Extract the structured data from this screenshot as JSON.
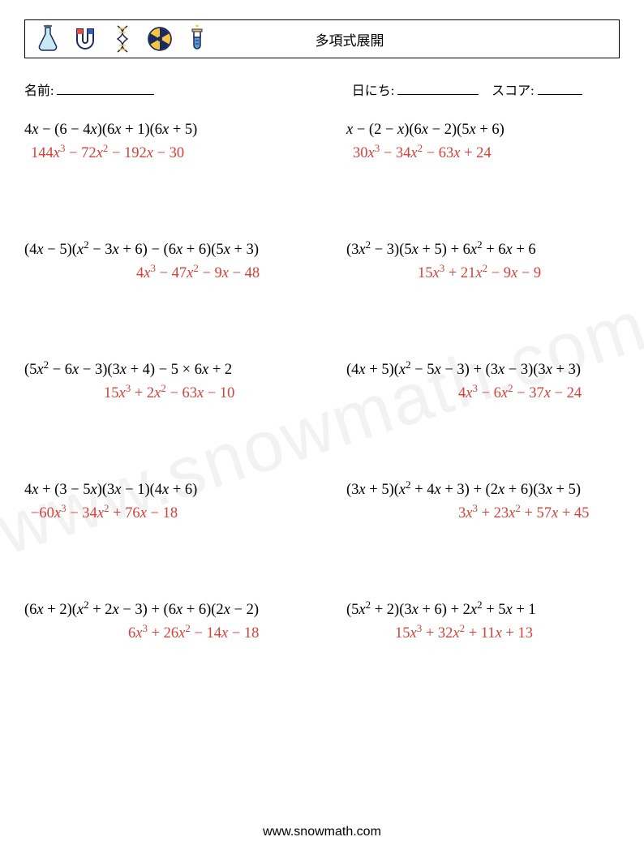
{
  "header": {
    "title": "多項式展開",
    "icons": [
      "flask-icon",
      "magnet-icon",
      "dna-icon",
      "radiation-icon",
      "test-tube-icon"
    ],
    "icon_colors": {
      "flask_fill": "#c9e8f5",
      "flask_stroke": "#1a2a5e",
      "flask_flame": "#f5c542",
      "magnet_stroke": "#1a2a5e",
      "magnet_left": "#e74c3c",
      "magnet_right": "#3b5bb5",
      "dna_stroke": "#1a2a5e",
      "dna_rung": "#f5c542",
      "rad_stroke": "#1a2a5e",
      "rad_fill": "#f5c542",
      "tube_stroke": "#1a2a5e",
      "tube_fill": "#5a9bd4",
      "tube_flame": "#f5c542"
    }
  },
  "meta": {
    "name_label": "名前:",
    "date_label": "日にち:",
    "score_label": "スコア:"
  },
  "style": {
    "answer_color": "#d8403a",
    "question_color": "#000000",
    "background": "#ffffff",
    "watermark_color": "#f2f2f2",
    "question_fontsize": 18.5,
    "answer_fontsize": 18.5
  },
  "watermark": "www.snowmath.com",
  "footer": "www.snowmath.com",
  "rows": [
    {
      "left": {
        "question": "4<i>x</i> − (6 − 4<i>x</i>)(6<i>x</i> + 1)(6<i>x</i> + 5)",
        "answer": "144<i>x</i><sup>3</sup> − 72<i>x</i><sup>2</sup> − 192<i>x</i> − 30",
        "answer_indent": 8
      },
      "right": {
        "question": "<i>x</i> − (2 − <i>x</i>)(6<i>x</i> − 2)(5<i>x</i> + 6)",
        "answer": "30<i>x</i><sup>3</sup> − 34<i>x</i><sup>2</sup> − 63<i>x</i> + 24",
        "answer_indent": 8
      }
    },
    {
      "left": {
        "question": "(4<i>x</i> − 5)(<i>x</i><sup>2</sup> − 3<i>x</i> + 6) − (6<i>x</i> + 6)(5<i>x</i> + 3)",
        "answer": "4<i>x</i><sup>3</sup> − 47<i>x</i><sup>2</sup> − 9<i>x</i> − 48",
        "answer_indent": 138
      },
      "right": {
        "question": "(3<i>x</i><sup>2</sup> − 3)(5<i>x</i> + 5) + 6<i>x</i><sup>2</sup> + 6<i>x</i> + 6",
        "answer": "15<i>x</i><sup>3</sup> + 21<i>x</i><sup>2</sup> − 9<i>x</i> − 9",
        "answer_indent": 88
      }
    },
    {
      "left": {
        "question": "(5<i>x</i><sup>2</sup> − 6<i>x</i> − 3)(3<i>x</i> + 4) − 5 × 6<i>x</i> + 2",
        "answer": "15<i>x</i><sup>3</sup> + 2<i>x</i><sup>2</sup> − 63<i>x</i> − 10",
        "answer_indent": 98
      },
      "right": {
        "question": "(4<i>x</i> + 5)(<i>x</i><sup>2</sup> − 5<i>x</i> − 3) + (3<i>x</i> − 3)(3<i>x</i> + 3)",
        "answer": "4<i>x</i><sup>3</sup> − 6<i>x</i><sup>2</sup> − 37<i>x</i> − 24",
        "answer_indent": 138
      }
    },
    {
      "left": {
        "question": "4<i>x</i> + (3 − 5<i>x</i>)(3<i>x</i> − 1)(4<i>x</i> + 6)",
        "answer": "−60<i>x</i><sup>3</sup> − 34<i>x</i><sup>2</sup> + 76<i>x</i> − 18",
        "answer_indent": 8
      },
      "right": {
        "question": "(3<i>x</i> + 5)(<i>x</i><sup>2</sup> + 4<i>x</i> + 3) + (2<i>x</i> + 6)(3<i>x</i> + 5)",
        "answer": "3<i>x</i><sup>3</sup> + 23<i>x</i><sup>2</sup> + 57<i>x</i> + 45",
        "answer_indent": 138
      }
    },
    {
      "left": {
        "question": "(6<i>x</i> + 2)(<i>x</i><sup>2</sup> + 2<i>x</i> − 3) + (6<i>x</i> + 6)(2<i>x</i> − 2)",
        "answer": "6<i>x</i><sup>3</sup> + 26<i>x</i><sup>2</sup> − 14<i>x</i> − 18",
        "answer_indent": 128
      },
      "right": {
        "question": "(5<i>x</i><sup>2</sup> + 2)(3<i>x</i> + 6) + 2<i>x</i><sup>2</sup> + 5<i>x</i> + 1",
        "answer": "15<i>x</i><sup>3</sup> + 32<i>x</i><sup>2</sup> + 11<i>x</i> + 13",
        "answer_indent": 60
      }
    }
  ]
}
